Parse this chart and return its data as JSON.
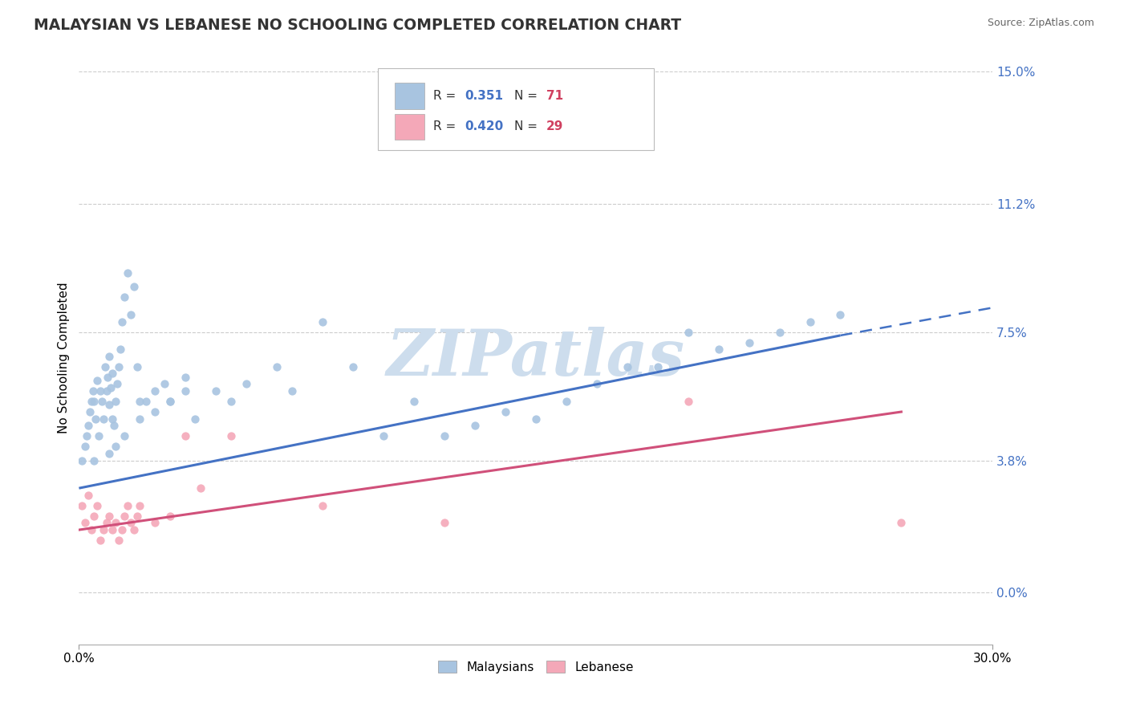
{
  "title": "MALAYSIAN VS LEBANESE NO SCHOOLING COMPLETED CORRELATION CHART",
  "source": "Source: ZipAtlas.com",
  "ylabel": "No Schooling Completed",
  "xlim": [
    0.0,
    30.0
  ],
  "ylim": [
    -1.5,
    15.0
  ],
  "ytick_vals": [
    0.0,
    3.8,
    7.5,
    11.2,
    15.0
  ],
  "ytick_labels": [
    "0.0%",
    "3.8%",
    "7.5%",
    "11.2%",
    "15.0%"
  ],
  "xtick_vals": [
    0.0,
    30.0
  ],
  "xtick_labels": [
    "0.0%",
    "30.0%"
  ],
  "r_malaysian": 0.351,
  "n_malaysian": 71,
  "r_lebanese": 0.42,
  "n_lebanese": 29,
  "malaysian_color": "#a8c4e0",
  "lebanese_color": "#f4a8b8",
  "trend_malaysian_color": "#4472c4",
  "trend_lebanese_color": "#d0507a",
  "watermark": "ZIPatlas",
  "watermark_color": "#cddded",
  "legend_r_color": "#4472c4",
  "legend_n_color": "#d04060",
  "malaysian_trend_start_y": 3.0,
  "malaysian_trend_end_x": 25.0,
  "malaysian_trend_end_y": 7.4,
  "malaysian_dash_end_x": 30.0,
  "malaysian_dash_end_y": 8.2,
  "lebanese_trend_start_y": 1.8,
  "lebanese_trend_end_x": 27.0,
  "lebanese_trend_end_y": 5.2,
  "malaysians_x": [
    0.1,
    0.2,
    0.25,
    0.3,
    0.35,
    0.4,
    0.45,
    0.5,
    0.55,
    0.6,
    0.65,
    0.7,
    0.75,
    0.8,
    0.85,
    0.9,
    0.95,
    1.0,
    1.0,
    1.05,
    1.1,
    1.1,
    1.15,
    1.2,
    1.25,
    1.3,
    1.35,
    1.4,
    1.5,
    1.6,
    1.7,
    1.8,
    1.9,
    2.0,
    2.2,
    2.5,
    2.8,
    3.0,
    3.5,
    3.8,
    4.5,
    5.0,
    5.5,
    6.5,
    7.0,
    8.0,
    9.0,
    10.0,
    11.0,
    12.0,
    13.0,
    14.0,
    15.0,
    16.0,
    17.0,
    18.0,
    19.0,
    20.0,
    21.0,
    22.0,
    23.0,
    24.0,
    25.0,
    0.5,
    1.0,
    1.2,
    1.5,
    2.0,
    2.5,
    3.0,
    3.5
  ],
  "malaysians_y": [
    3.8,
    4.2,
    4.5,
    4.8,
    5.2,
    5.5,
    5.8,
    5.5,
    5.0,
    6.1,
    4.5,
    5.8,
    5.5,
    5.0,
    6.5,
    5.8,
    6.2,
    5.4,
    6.8,
    5.9,
    6.3,
    5.0,
    4.8,
    5.5,
    6.0,
    6.5,
    7.0,
    7.8,
    8.5,
    9.2,
    8.0,
    8.8,
    6.5,
    5.5,
    5.5,
    5.8,
    6.0,
    5.5,
    6.2,
    5.0,
    5.8,
    5.5,
    6.0,
    6.5,
    5.8,
    7.8,
    6.5,
    4.5,
    5.5,
    4.5,
    4.8,
    5.2,
    5.0,
    5.5,
    6.0,
    6.5,
    6.5,
    7.5,
    7.0,
    7.2,
    7.5,
    7.8,
    8.0,
    3.8,
    4.0,
    4.2,
    4.5,
    5.0,
    5.2,
    5.5,
    5.8
  ],
  "lebanese_x": [
    0.1,
    0.2,
    0.3,
    0.4,
    0.5,
    0.6,
    0.7,
    0.8,
    0.9,
    1.0,
    1.1,
    1.2,
    1.3,
    1.4,
    1.5,
    1.6,
    1.7,
    1.8,
    1.9,
    2.0,
    2.5,
    3.0,
    3.5,
    4.0,
    5.0,
    8.0,
    12.0,
    20.0,
    27.0
  ],
  "lebanese_y": [
    2.5,
    2.0,
    2.8,
    1.8,
    2.2,
    2.5,
    1.5,
    1.8,
    2.0,
    2.2,
    1.8,
    2.0,
    1.5,
    1.8,
    2.2,
    2.5,
    2.0,
    1.8,
    2.2,
    2.5,
    2.0,
    2.2,
    4.5,
    3.0,
    4.5,
    2.5,
    2.0,
    5.5,
    2.0
  ]
}
